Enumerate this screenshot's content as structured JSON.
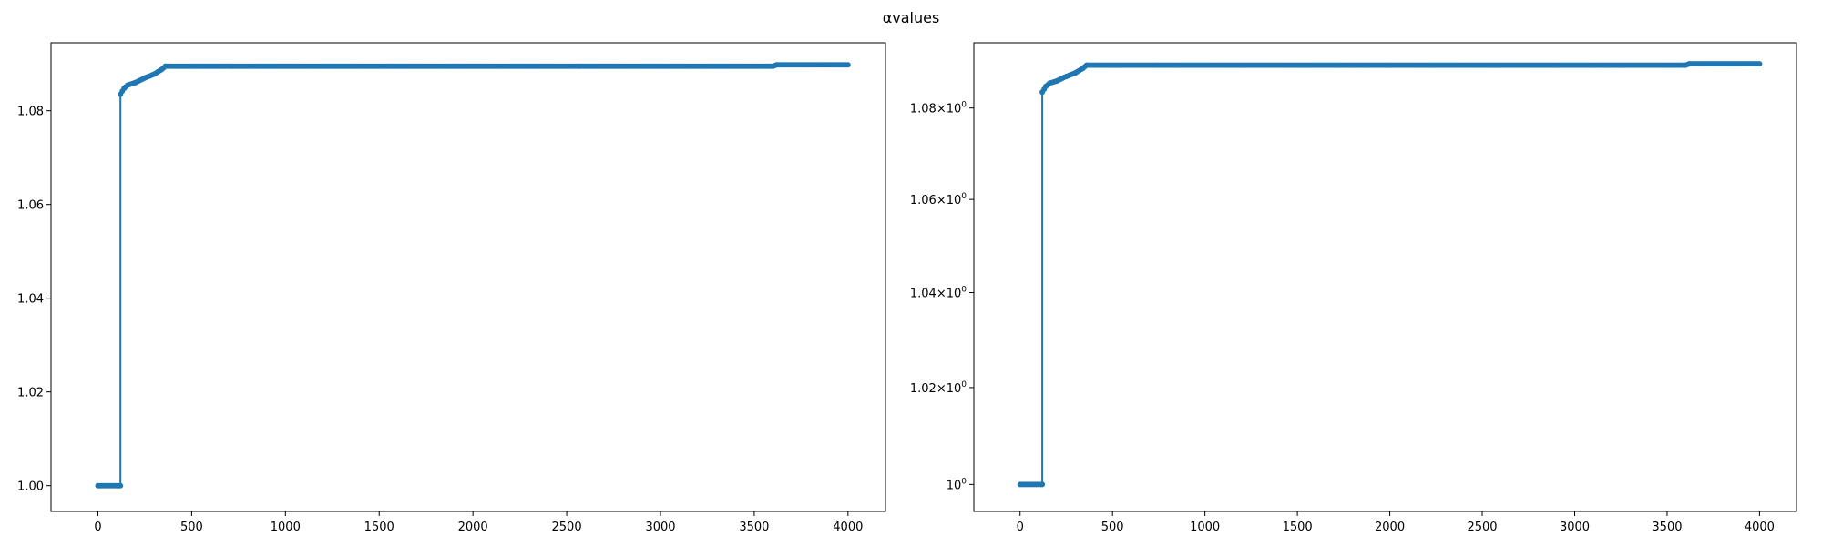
{
  "figure": {
    "suptitle": "αvalues"
  },
  "chart_data": [
    {
      "type": "line",
      "title": "",
      "xlabel": "",
      "ylabel": "",
      "yscale": "linear",
      "xlim": [
        -250,
        4200
      ],
      "ylim": [
        0.9945,
        1.0945
      ],
      "x_ticks": [
        0,
        500,
        1000,
        1500,
        2000,
        2500,
        3000,
        3500,
        4000
      ],
      "x_tick_labels": [
        "0",
        "500",
        "1000",
        "1500",
        "2000",
        "2500",
        "3000",
        "3500",
        "4000"
      ],
      "y_ticks": [
        1.0,
        1.02,
        1.04,
        1.06,
        1.08
      ],
      "y_tick_labels": [
        "1.00",
        "1.02",
        "1.04",
        "1.06",
        "1.08"
      ],
      "grid": false,
      "legend": "none",
      "marker": "circle",
      "color": "#1f77b4",
      "series": [
        {
          "points": [
            [
              0,
              1.0
            ],
            [
              120,
              1.0
            ],
            [
              120,
              1.0835
            ],
            [
              140,
              1.0848
            ],
            [
              160,
              1.0855
            ],
            [
              200,
              1.086
            ],
            [
              250,
              1.087
            ],
            [
              300,
              1.0878
            ],
            [
              340,
              1.0888
            ],
            [
              360,
              1.0895
            ],
            [
              3600,
              1.0895
            ],
            [
              3620,
              1.0898
            ],
            [
              4000,
              1.0898
            ]
          ]
        }
      ]
    },
    {
      "type": "line",
      "title": "",
      "xlabel": "",
      "ylabel": "",
      "yscale": "log",
      "xlim": [
        -250,
        4200
      ],
      "ylim": [
        0.9945,
        1.0945
      ],
      "x_ticks": [
        0,
        500,
        1000,
        1500,
        2000,
        2500,
        3000,
        3500,
        4000
      ],
      "x_tick_labels": [
        "0",
        "500",
        "1000",
        "1500",
        "2000",
        "2500",
        "3000",
        "3500",
        "4000"
      ],
      "y_ticks": [
        1.0,
        1.02,
        1.04,
        1.06,
        1.08
      ],
      "y_tick_labels": [
        {
          "base": "10",
          "exp": "0"
        },
        {
          "base": "1.02×10",
          "exp": "0"
        },
        {
          "base": "1.04×10",
          "exp": "0"
        },
        {
          "base": "1.06×10",
          "exp": "0"
        },
        {
          "base": "1.08×10",
          "exp": "0"
        }
      ],
      "grid": false,
      "legend": "none",
      "marker": "circle",
      "color": "#1f77b4",
      "series": [
        {
          "points": [
            [
              0,
              1.0
            ],
            [
              120,
              1.0
            ],
            [
              120,
              1.0835
            ],
            [
              140,
              1.0848
            ],
            [
              160,
              1.0855
            ],
            [
              200,
              1.086
            ],
            [
              250,
              1.087
            ],
            [
              300,
              1.0878
            ],
            [
              340,
              1.0888
            ],
            [
              360,
              1.0895
            ],
            [
              3600,
              1.0895
            ],
            [
              3620,
              1.0898
            ],
            [
              4000,
              1.0898
            ]
          ]
        }
      ]
    }
  ]
}
